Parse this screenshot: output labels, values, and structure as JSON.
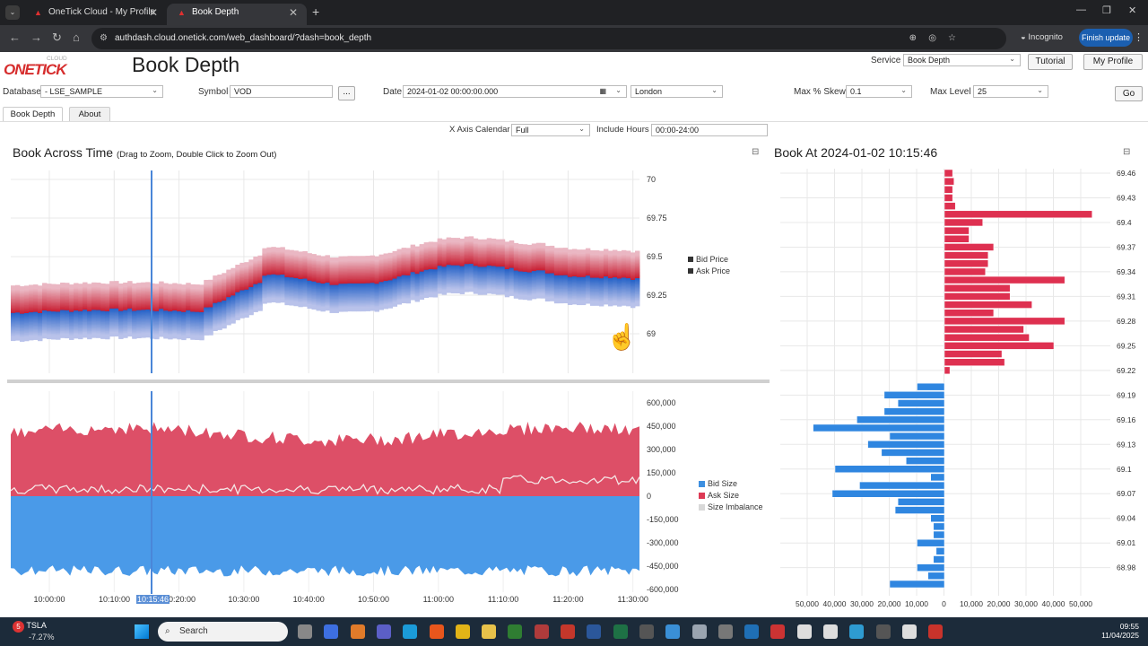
{
  "browser": {
    "tabs": [
      {
        "title": "OneTick Cloud - My Profile",
        "active": false
      },
      {
        "title": "Book Depth",
        "active": true
      }
    ],
    "url": "authdash.cloud.onetick.com/web_dashboard/?dash=book_depth",
    "incognito_label": "Incognito",
    "finish_update_label": "Finish update"
  },
  "app": {
    "logo_main": "ONETICK",
    "logo_sub": "CLOUD",
    "page_title": "Book Depth",
    "service_label": "Service",
    "service_value": "Book Depth",
    "tutorial_label": "Tutorial",
    "profile_label": "My Profile",
    "database_label": "Database",
    "database_value": "- LSE_SAMPLE",
    "symbol_label": "Symbol",
    "symbol_value": "VOD",
    "symbol_more": "...",
    "date_label": "Date",
    "date_value": "2024-01-02 00:00:00.000",
    "timezone_value": "London",
    "skew_label": "Max % Skew",
    "skew_value": "0.1",
    "level_label": "Max Level",
    "level_value": "25",
    "go_label": "Go",
    "tabs": [
      "Book Depth",
      "About"
    ],
    "xaxis_calendar_label": "X Axis Calendar",
    "xaxis_calendar_value": "Full",
    "include_hours_label": "Include Hours",
    "include_hours_value": "00:00-24:00"
  },
  "left_panel": {
    "title": "Book Across Time",
    "subtitle": "(Drag to Zoom, Double Click to Zoom Out)",
    "cursor_time": "10:15:46",
    "price_ticks": [
      "70",
      "69.75",
      "69.5",
      "69.25",
      "69"
    ],
    "price_legend": [
      "Bid Price",
      "Ask Price"
    ],
    "size_ticks": [
      "600,000",
      "450,000",
      "300,000",
      "150,000",
      "0",
      "-150,000",
      "-300,000",
      "-450,000",
      "-600,000"
    ],
    "size_legend": [
      {
        "label": "Bid Size",
        "color": "#3d8fe0"
      },
      {
        "label": "Ask Size",
        "color": "#dd3a55"
      },
      {
        "label": "Size Imbalance",
        "color": "#d8d8d8"
      }
    ],
    "time_ticks": [
      "10:00:00",
      "10:10:00",
      "10:20:00",
      "10:30:00",
      "10:40:00",
      "10:50:00",
      "11:00:00",
      "11:10:00",
      "11:20:00",
      "11:30:00"
    ]
  },
  "right_panel": {
    "title": "Book At 2024-01-02 10:15:46",
    "chart_data": {
      "type": "bar",
      "orientation": "horizontal",
      "price_ticks": [
        "69.46",
        "69.43",
        "69.4",
        "69.37",
        "69.34",
        "69.31",
        "69.28",
        "69.25",
        "69.22",
        "69.19",
        "69.16",
        "69.13",
        "69.1",
        "69.07",
        "69.04",
        "69.01",
        "68.98"
      ],
      "size_ticks": [
        "50,000",
        "40,000",
        "30,000",
        "20,000",
        "10,000",
        "0",
        "10,000",
        "20,000",
        "30,000",
        "40,000",
        "50,000"
      ],
      "ask_sizes": [
        {
          "price": 69.46,
          "size": 3000
        },
        {
          "price": 69.45,
          "size": 3500
        },
        {
          "price": 69.44,
          "size": 3000
        },
        {
          "price": 69.43,
          "size": 3000
        },
        {
          "price": 69.42,
          "size": 4000
        },
        {
          "price": 69.41,
          "size": 54000
        },
        {
          "price": 69.4,
          "size": 14000
        },
        {
          "price": 69.39,
          "size": 9000
        },
        {
          "price": 69.38,
          "size": 9000
        },
        {
          "price": 69.37,
          "size": 18000
        },
        {
          "price": 69.36,
          "size": 16000
        },
        {
          "price": 69.35,
          "size": 16000
        },
        {
          "price": 69.34,
          "size": 15000
        },
        {
          "price": 69.33,
          "size": 44000
        },
        {
          "price": 69.32,
          "size": 24000
        },
        {
          "price": 69.31,
          "size": 24000
        },
        {
          "price": 69.3,
          "size": 32000
        },
        {
          "price": 69.29,
          "size": 18000
        },
        {
          "price": 69.28,
          "size": 44000
        },
        {
          "price": 69.27,
          "size": 29000
        },
        {
          "price": 69.26,
          "size": 31000
        },
        {
          "price": 69.25,
          "size": 40000
        },
        {
          "price": 69.24,
          "size": 21000
        },
        {
          "price": 69.23,
          "size": 22000
        },
        {
          "price": 69.22,
          "size": 2000
        }
      ],
      "bid_sizes": [
        {
          "price": 69.2,
          "size": 10000
        },
        {
          "price": 69.19,
          "size": 22000
        },
        {
          "price": 69.18,
          "size": 17000
        },
        {
          "price": 69.17,
          "size": 22000
        },
        {
          "price": 69.16,
          "size": 32000
        },
        {
          "price": 69.15,
          "size": 48000
        },
        {
          "price": 69.14,
          "size": 20000
        },
        {
          "price": 69.13,
          "size": 28000
        },
        {
          "price": 69.12,
          "size": 23000
        },
        {
          "price": 69.11,
          "size": 14000
        },
        {
          "price": 69.1,
          "size": 40000
        },
        {
          "price": 69.09,
          "size": 5000
        },
        {
          "price": 69.08,
          "size": 31000
        },
        {
          "price": 69.07,
          "size": 41000
        },
        {
          "price": 69.06,
          "size": 17000
        },
        {
          "price": 69.05,
          "size": 18000
        },
        {
          "price": 69.04,
          "size": 5000
        },
        {
          "price": 69.03,
          "size": 4000
        },
        {
          "price": 69.02,
          "size": 4000
        },
        {
          "price": 69.01,
          "size": 10000
        },
        {
          "price": 69.0,
          "size": 3000
        },
        {
          "price": 68.99,
          "size": 4000
        },
        {
          "price": 68.98,
          "size": 10000
        },
        {
          "price": 68.97,
          "size": 6000
        },
        {
          "price": 68.96,
          "size": 20000
        }
      ]
    }
  },
  "taskbar": {
    "ticker": "TSLA",
    "ticker_change": "-7.27%",
    "search_placeholder": "Search",
    "time": "09:55",
    "date": "11/04/2025"
  }
}
